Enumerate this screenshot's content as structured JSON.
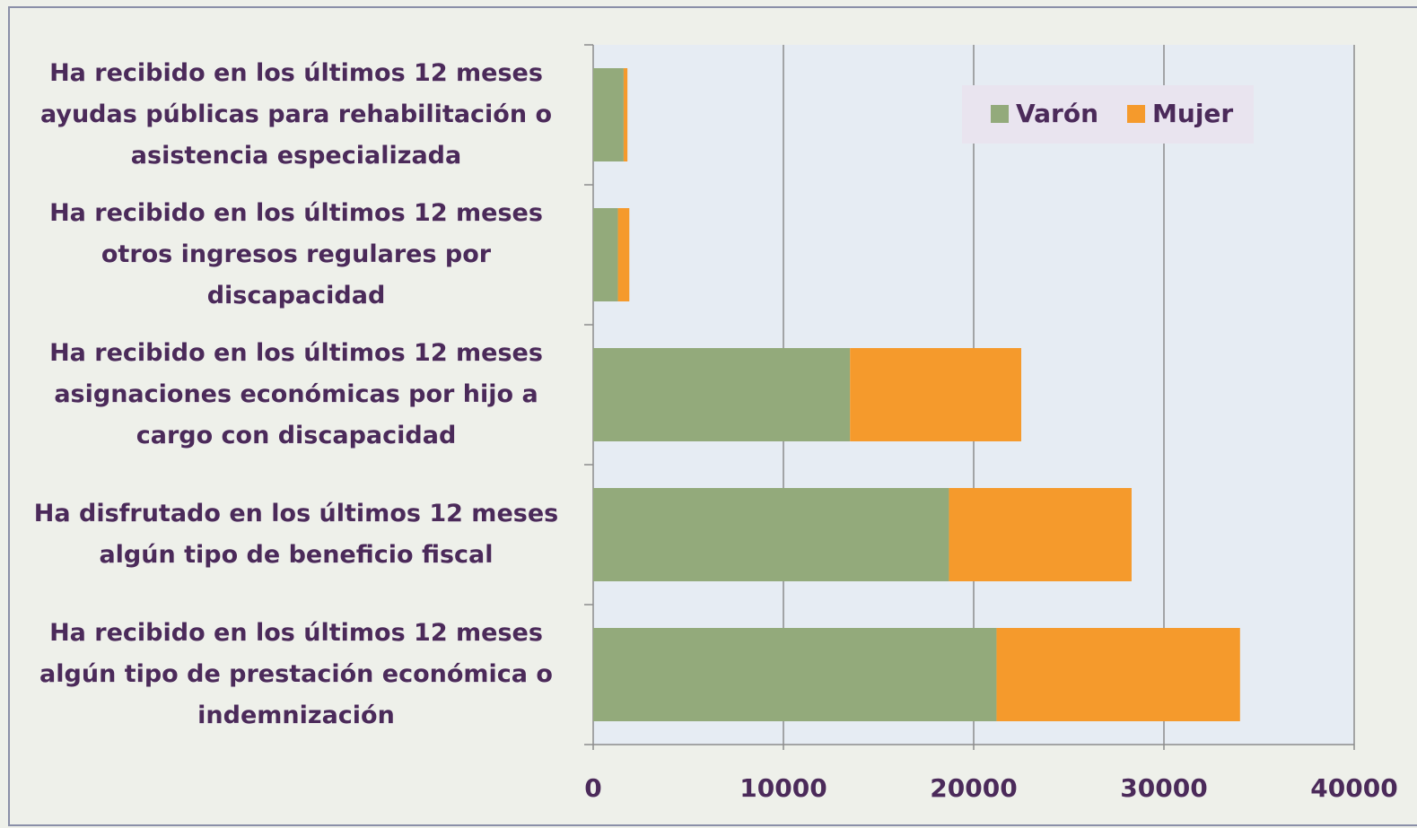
{
  "chart_data": {
    "type": "barh_stacked",
    "categories": [
      "Ha recibido en los últimos 12 meses ayudas públicas para rehabilitación o asistencia especializada",
      "Ha recibido en los últimos 12 meses otros ingresos regulares por discapacidad",
      "Ha recibido en los últimos 12 meses asignaciones económicas por hijo a cargo con discapacidad",
      "Ha disfrutado en los últimos 12 meses algún tipo de beneficio fiscal",
      "Ha recibido en los últimos 12 meses algún tipo de prestación económica o indemnización"
    ],
    "series": [
      {
        "name": "Varón",
        "color": "#93aa7b",
        "values": [
          1600,
          1300,
          13500,
          18700,
          21200
        ]
      },
      {
        "name": "Mujer",
        "color": "#f59a2c",
        "values": [
          200,
          600,
          9000,
          9600,
          12800
        ]
      }
    ],
    "xlim": [
      0,
      40000
    ],
    "xticks": [
      0,
      10000,
      20000,
      30000,
      40000
    ],
    "grid": true,
    "legend": "top-right"
  }
}
